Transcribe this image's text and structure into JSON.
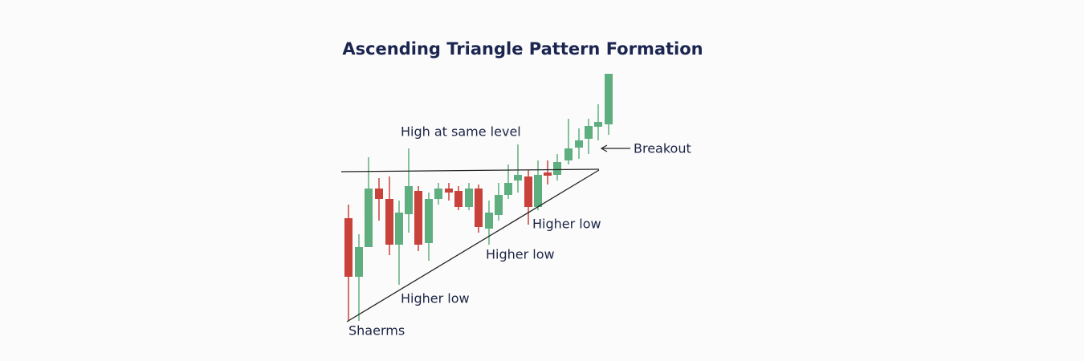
{
  "title": "Ascending Triangle Pattern Formation",
  "annotations": {
    "resistance": "High at same level",
    "breakout": "Breakout",
    "low1": "Higher low",
    "low2": "Higher low",
    "low3": "Higher low",
    "start": "Shaerms"
  }
}
